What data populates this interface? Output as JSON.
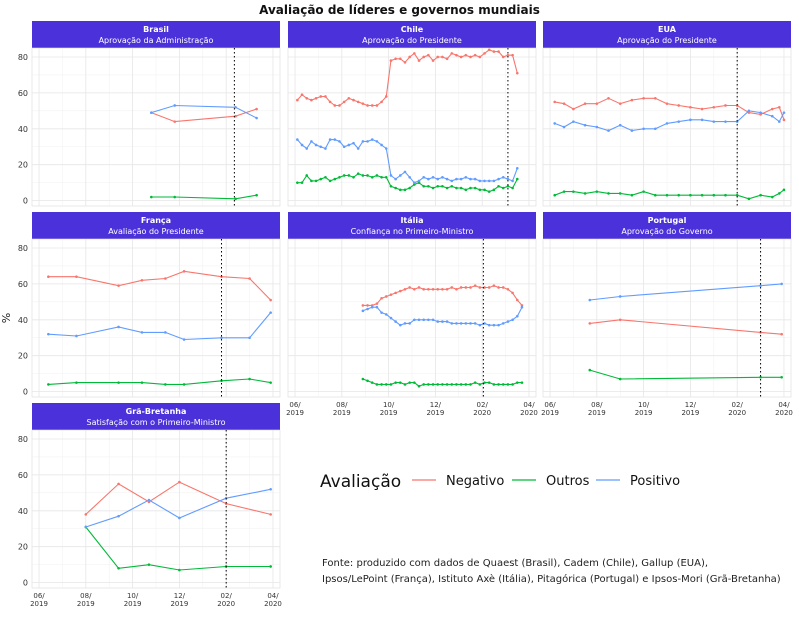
{
  "title": "Avaliação de líderes e governos mundiais",
  "ylabel": "%",
  "source": {
    "line1": "Fonte: produzido com dados de Quaest (Brasil), Cadem (Chile), Gallup (EUA),",
    "line2": "Ipsos/LePoint (França), Istituto Axè (Itália), Pitagórica (Portugal) e Ipsos-Mori (Grã-Bretanha)"
  },
  "legend": {
    "title": "Avaliação",
    "items": [
      {
        "label": "Negativo",
        "color": "#F8766D"
      },
      {
        "label": "Outros",
        "color": "#00BA38"
      },
      {
        "label": "Positivo",
        "color": "#619CFF"
      }
    ]
  },
  "colors": {
    "header": "#4B31D9",
    "header_text": "#ffffff",
    "vline": "#000000"
  },
  "chart_data": {
    "type": "line",
    "x_axis": {
      "ticks": [
        0,
        2,
        4,
        6,
        8,
        10
      ],
      "labels": [
        [
          "06/",
          "2019"
        ],
        [
          "08/",
          "2019"
        ],
        [
          "10/",
          "2019"
        ],
        [
          "12/",
          "2019"
        ],
        [
          "02/",
          "2020"
        ],
        [
          "04/",
          "2020"
        ]
      ],
      "note": "months since 06/2019",
      "range": [
        -0.3,
        10.3
      ]
    },
    "ylim": [
      -3,
      85
    ],
    "yticks": [
      0,
      20,
      40,
      60,
      80
    ],
    "marker_month": 8.1,
    "panels": [
      {
        "country": "Brasil",
        "subtitle": "Aprovação da Administração",
        "vline": 8.35,
        "series": [
          {
            "name": "Negativo",
            "x": [
              4.8,
              5.8,
              8.4,
              9.3
            ],
            "y": [
              49,
              44,
              47,
              51
            ]
          },
          {
            "name": "Outros",
            "x": [
              4.8,
              5.8,
              8.4,
              9.3
            ],
            "y": [
              2,
              2,
              1,
              3
            ]
          },
          {
            "name": "Positivo",
            "x": [
              4.8,
              5.8,
              8.4,
              9.3
            ],
            "y": [
              49,
              53,
              52,
              46
            ]
          }
        ]
      },
      {
        "country": "Chile",
        "subtitle": "Aprovação do Presidente",
        "vline": 9.1,
        "series": [
          {
            "name": "Negativo",
            "x": [
              0.1,
              0.3,
              0.5,
              0.7,
              0.9,
              1.1,
              1.3,
              1.5,
              1.7,
              1.9,
              2.1,
              2.3,
              2.5,
              2.7,
              2.9,
              3.1,
              3.3,
              3.5,
              3.7,
              3.9,
              4.1,
              4.3,
              4.5,
              4.7,
              4.9,
              5.1,
              5.3,
              5.5,
              5.7,
              5.9,
              6.1,
              6.3,
              6.5,
              6.7,
              6.9,
              7.1,
              7.3,
              7.5,
              7.7,
              7.9,
              8.1,
              8.3,
              8.5,
              8.7,
              8.9,
              9.1,
              9.3,
              9.5
            ],
            "y": [
              56,
              59,
              57,
              56,
              57,
              58,
              58,
              55,
              53,
              53,
              55,
              57,
              56,
              55,
              54,
              53,
              53,
              53,
              55,
              58,
              78,
              79,
              79,
              77,
              80,
              82,
              78,
              80,
              81,
              78,
              80,
              80,
              79,
              82,
              81,
              80,
              81,
              80,
              81,
              80,
              82,
              84,
              83,
              83,
              80,
              81,
              81,
              71
            ]
          },
          {
            "name": "Outros",
            "x": [
              0.1,
              0.3,
              0.5,
              0.7,
              0.9,
              1.1,
              1.3,
              1.5,
              1.7,
              1.9,
              2.1,
              2.3,
              2.5,
              2.7,
              2.9,
              3.1,
              3.3,
              3.5,
              3.7,
              3.9,
              4.1,
              4.3,
              4.5,
              4.7,
              4.9,
              5.1,
              5.3,
              5.5,
              5.7,
              5.9,
              6.1,
              6.3,
              6.5,
              6.7,
              6.9,
              7.1,
              7.3,
              7.5,
              7.7,
              7.9,
              8.1,
              8.3,
              8.5,
              8.7,
              8.9,
              9.1,
              9.3,
              9.5
            ],
            "y": [
              10,
              10,
              14,
              11,
              11,
              12,
              13,
              11,
              12,
              13,
              14,
              14,
              13,
              15,
              14,
              14,
              13,
              14,
              13,
              13,
              8,
              7,
              6,
              6,
              7,
              9,
              10,
              8,
              8,
              7,
              8,
              8,
              7,
              8,
              7,
              7,
              6,
              7,
              7,
              6,
              6,
              5,
              6,
              8,
              7,
              8,
              7,
              12
            ]
          },
          {
            "name": "Positivo",
            "x": [
              0.1,
              0.3,
              0.5,
              0.7,
              0.9,
              1.1,
              1.3,
              1.5,
              1.7,
              1.9,
              2.1,
              2.3,
              2.5,
              2.7,
              2.9,
              3.1,
              3.3,
              3.5,
              3.7,
              3.9,
              4.1,
              4.3,
              4.5,
              4.7,
              4.9,
              5.1,
              5.3,
              5.5,
              5.7,
              5.9,
              6.1,
              6.3,
              6.5,
              6.7,
              6.9,
              7.1,
              7.3,
              7.5,
              7.7,
              7.9,
              8.1,
              8.3,
              8.5,
              8.7,
              8.9,
              9.1,
              9.3,
              9.5
            ],
            "y": [
              34,
              31,
              29,
              33,
              31,
              30,
              29,
              34,
              34,
              33,
              30,
              31,
              32,
              29,
              33,
              33,
              34,
              33,
              31,
              29,
              14,
              12,
              14,
              16,
              13,
              10,
              11,
              13,
              12,
              13,
              12,
              13,
              12,
              11,
              12,
              12,
              13,
              12,
              12,
              11,
              11,
              11,
              11,
              12,
              13,
              12,
              11,
              18
            ]
          }
        ]
      },
      {
        "country": "EUA",
        "subtitle": "Aprovação do Presidente",
        "vline": 8.0,
        "series": [
          {
            "name": "Negativo",
            "x": [
              0.2,
              0.6,
              1.0,
              1.5,
              2.0,
              2.5,
              3.0,
              3.5,
              4.0,
              4.5,
              5.0,
              5.5,
              6.0,
              6.5,
              7.0,
              7.5,
              8.0,
              8.5,
              9.0,
              9.5,
              9.8,
              10.0
            ],
            "y": [
              55,
              54,
              51,
              54,
              54,
              57,
              54,
              56,
              57,
              57,
              54,
              53,
              52,
              51,
              52,
              53,
              53,
              49,
              48,
              51,
              52,
              45
            ]
          },
          {
            "name": "Outros",
            "x": [
              0.2,
              0.6,
              1.0,
              1.5,
              2.0,
              2.5,
              3.0,
              3.5,
              4.0,
              4.5,
              5.0,
              5.5,
              6.0,
              6.5,
              7.0,
              7.5,
              8.0,
              8.5,
              9.0,
              9.5,
              9.8,
              10.0
            ],
            "y": [
              3,
              5,
              5,
              4,
              5,
              4,
              4,
              3,
              5,
              3,
              3,
              3,
              3,
              3,
              3,
              3,
              3,
              1,
              3,
              2,
              4,
              6
            ]
          },
          {
            "name": "Positivo",
            "x": [
              0.2,
              0.6,
              1.0,
              1.5,
              2.0,
              2.5,
              3.0,
              3.5,
              4.0,
              4.5,
              5.0,
              5.5,
              6.0,
              6.5,
              7.0,
              7.5,
              8.0,
              8.5,
              9.0,
              9.5,
              9.8,
              10.0
            ],
            "y": [
              43,
              41,
              44,
              42,
              41,
              39,
              42,
              39,
              40,
              40,
              43,
              44,
              45,
              45,
              44,
              44,
              44,
              50,
              49,
              47,
              44,
              49
            ]
          }
        ]
      },
      {
        "country": "França",
        "subtitle": "Avaliação do Presidente",
        "vline": 7.8,
        "series": [
          {
            "name": "Negativo",
            "x": [
              0.4,
              1.6,
              3.4,
              4.4,
              5.4,
              6.2,
              7.8,
              9.0,
              9.9
            ],
            "y": [
              64,
              64,
              59,
              62,
              63,
              67,
              64,
              63,
              51
            ]
          },
          {
            "name": "Outros",
            "x": [
              0.4,
              1.6,
              3.4,
              4.4,
              5.4,
              6.2,
              7.8,
              9.0,
              9.9
            ],
            "y": [
              4,
              5,
              5,
              5,
              4,
              4,
              6,
              7,
              5
            ]
          },
          {
            "name": "Positivo",
            "x": [
              0.4,
              1.6,
              3.4,
              4.4,
              5.4,
              6.2,
              7.8,
              9.0,
              9.9
            ],
            "y": [
              32,
              31,
              36,
              33,
              33,
              29,
              30,
              30,
              44
            ]
          }
        ]
      },
      {
        "country": "Itália",
        "subtitle": "Confiança no Primeiro-Ministro",
        "vline": 8.05,
        "series": [
          {
            "name": "Negativo",
            "x": [
              2.9,
              3.1,
              3.3,
              3.5,
              3.7,
              3.9,
              4.1,
              4.3,
              4.5,
              4.7,
              4.9,
              5.1,
              5.3,
              5.5,
              5.7,
              5.9,
              6.1,
              6.3,
              6.5,
              6.7,
              6.9,
              7.1,
              7.3,
              7.5,
              7.7,
              7.9,
              8.1,
              8.3,
              8.5,
              8.7,
              8.9,
              9.1,
              9.3,
              9.5,
              9.7
            ],
            "y": [
              48,
              48,
              48,
              49,
              52,
              53,
              54,
              55,
              56,
              57,
              58,
              57,
              58,
              57,
              57,
              57,
              57,
              57,
              57,
              58,
              57,
              58,
              58,
              58,
              59,
              58,
              58,
              58,
              59,
              58,
              58,
              57,
              55,
              51,
              48
            ]
          },
          {
            "name": "Outros",
            "x": [
              2.9,
              3.1,
              3.3,
              3.5,
              3.7,
              3.9,
              4.1,
              4.3,
              4.5,
              4.7,
              4.9,
              5.1,
              5.3,
              5.5,
              5.7,
              5.9,
              6.1,
              6.3,
              6.5,
              6.7,
              6.9,
              7.1,
              7.3,
              7.5,
              7.7,
              7.9,
              8.1,
              8.3,
              8.5,
              8.7,
              8.9,
              9.1,
              9.3,
              9.5,
              9.7
            ],
            "y": [
              7,
              6,
              5,
              4,
              4,
              4,
              4,
              5,
              5,
              4,
              5,
              5,
              3,
              4,
              4,
              4,
              4,
              4,
              4,
              4,
              4,
              4,
              4,
              4,
              5,
              4,
              5,
              5,
              4,
              4,
              4,
              4,
              4,
              5,
              5
            ]
          },
          {
            "name": "Positivo",
            "x": [
              2.9,
              3.1,
              3.3,
              3.5,
              3.7,
              3.9,
              4.1,
              4.3,
              4.5,
              4.7,
              4.9,
              5.1,
              5.3,
              5.5,
              5.7,
              5.9,
              6.1,
              6.3,
              6.5,
              6.7,
              6.9,
              7.1,
              7.3,
              7.5,
              7.7,
              7.9,
              8.1,
              8.3,
              8.5,
              8.7,
              8.9,
              9.1,
              9.3,
              9.5,
              9.7
            ],
            "y": [
              45,
              46,
              47,
              47,
              44,
              43,
              41,
              39,
              37,
              38,
              38,
              40,
              40,
              40,
              40,
              40,
              39,
              39,
              39,
              38,
              38,
              38,
              38,
              38,
              38,
              37,
              38,
              37,
              37,
              37,
              38,
              39,
              40,
              42,
              47
            ]
          }
        ]
      },
      {
        "country": "Portugal",
        "subtitle": "Aprovação do Governo",
        "vline": 9.0,
        "series": [
          {
            "name": "Negativo",
            "x": [
              1.7,
              3.0,
              9.0,
              9.9
            ],
            "y": [
              38,
              40,
              33,
              32
            ]
          },
          {
            "name": "Outros",
            "x": [
              1.7,
              3.0,
              9.0,
              9.9
            ],
            "y": [
              12,
              7,
              8,
              8
            ]
          },
          {
            "name": "Positivo",
            "x": [
              1.7,
              3.0,
              9.0,
              9.9
            ],
            "y": [
              51,
              53,
              59,
              60
            ]
          }
        ]
      },
      {
        "country": "Grã-Bretanha",
        "subtitle": "Satisfação com o Primeiro-Ministro",
        "vline": 8.0,
        "series": [
          {
            "name": "Negativo",
            "x": [
              2.0,
              3.4,
              4.7,
              6.0,
              8.0,
              9.9
            ],
            "y": [
              38,
              55,
              45,
              56,
              44,
              38
            ]
          },
          {
            "name": "Outros",
            "x": [
              2.0,
              3.4,
              4.7,
              6.0,
              8.0,
              9.9
            ],
            "y": [
              31,
              8,
              10,
              7,
              9,
              9
            ]
          },
          {
            "name": "Positivo",
            "x": [
              2.0,
              3.4,
              4.7,
              6.0,
              8.0,
              9.9
            ],
            "y": [
              31,
              37,
              46,
              36,
              47,
              52
            ]
          }
        ]
      }
    ]
  }
}
